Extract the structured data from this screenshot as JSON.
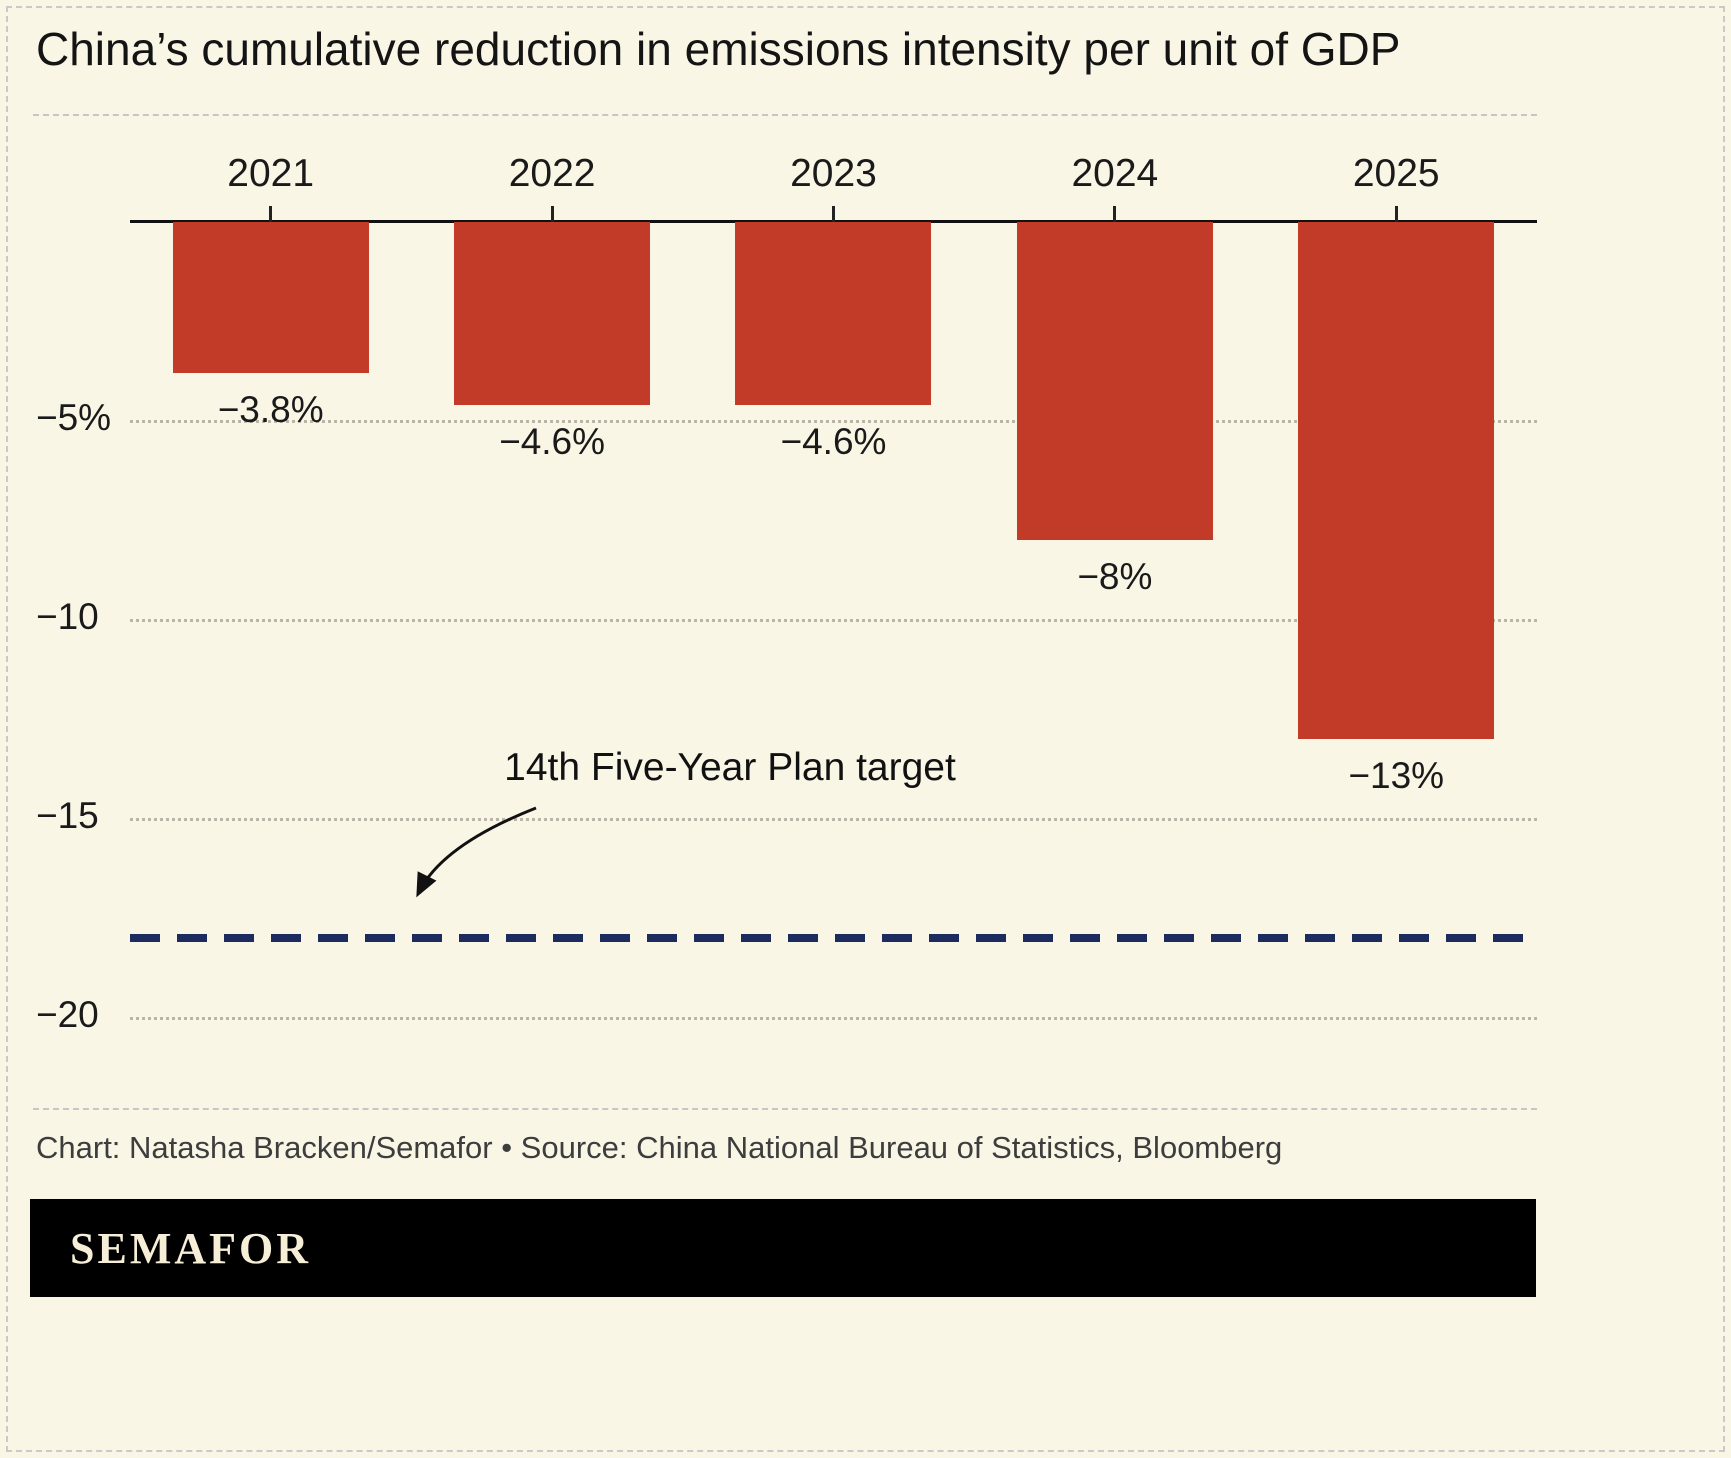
{
  "chart_data": {
    "type": "bar",
    "title": "China’s cumulative reduction in emissions intensity per unit of GDP",
    "categories": [
      "2021",
      "2022",
      "2023",
      "2024",
      "2025"
    ],
    "values": [
      -3.8,
      -4.6,
      -4.6,
      -8,
      -13
    ],
    "bar_labels": [
      "−3.8%",
      "−4.6%",
      "−4.6%",
      "−8%",
      "−13%"
    ],
    "yticks": [
      {
        "value": -5,
        "label": "−5%"
      },
      {
        "value": -10,
        "label": "−10"
      },
      {
        "value": -15,
        "label": "−15"
      },
      {
        "value": -20,
        "label": "−20"
      }
    ],
    "ylim": [
      -21,
      0
    ],
    "grid": true,
    "legend": false,
    "target_line": {
      "value": -18,
      "label": "14th Five-Year Plan target"
    },
    "colors": {
      "bar": "#c23a28",
      "target_line": "#1d2c5f",
      "background": "#faf6e6",
      "grid": "#b9b5a8",
      "text": "#1a1a1a"
    }
  },
  "footer": {
    "credit": "Chart: Natasha Bracken/Semafor • Source: China National Bureau of Statistics, Bloomberg",
    "logo_text": "SEMAFOR"
  }
}
